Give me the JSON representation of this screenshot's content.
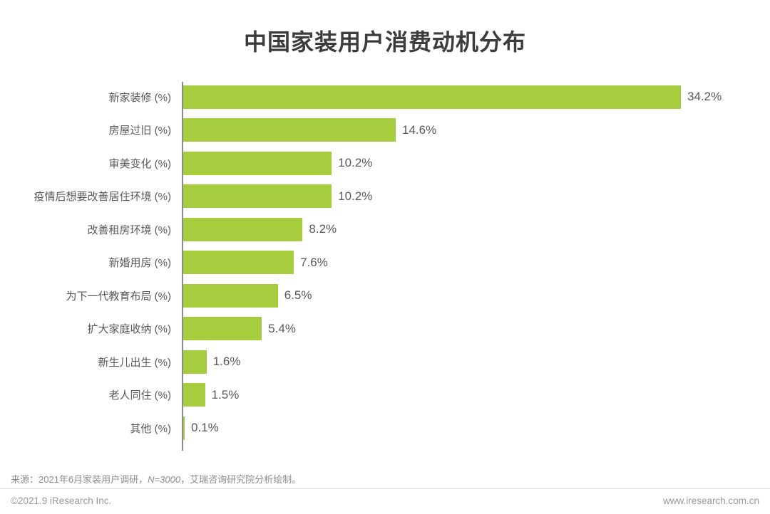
{
  "title": "中国家装用户消费动机分布",
  "chart_data": {
    "type": "bar",
    "orientation": "horizontal",
    "title": "中国家装用户消费动机分布",
    "categories": [
      "新家装修 (%)",
      "房屋过旧 (%)",
      "审美变化 (%)",
      "疫情后想要改善居住环境 (%)",
      "改善租房环境 (%)",
      "新婚用房 (%)",
      "为下一代教育布局 (%)",
      "扩大家庭收纳 (%)",
      "新生儿出生 (%)",
      "老人同住 (%)",
      "其他 (%)"
    ],
    "values": [
      34.2,
      14.6,
      10.2,
      10.2,
      8.2,
      7.6,
      6.5,
      5.4,
      1.6,
      1.5,
      0.1
    ],
    "value_labels": [
      "34.2%",
      "14.6%",
      "10.2%",
      "10.2%",
      "8.2%",
      "7.6%",
      "6.5%",
      "5.4%",
      "1.6%",
      "1.5%",
      "0.1%"
    ],
    "xlabel": "",
    "ylabel": "",
    "xlim": [
      0,
      36
    ],
    "grid": false,
    "legend": false,
    "bar_color": "#a5cd3e",
    "axis_color": "#8a8a8a"
  },
  "footer": {
    "source_prefix": "来源：2021年6月家装用户调研，",
    "source_n": "N=3000",
    "source_suffix": "，艾瑞咨询研究院分析绘制。",
    "copyright": "©2021.9 iResearch Inc.",
    "website": "www.iresearch.com.cn"
  }
}
